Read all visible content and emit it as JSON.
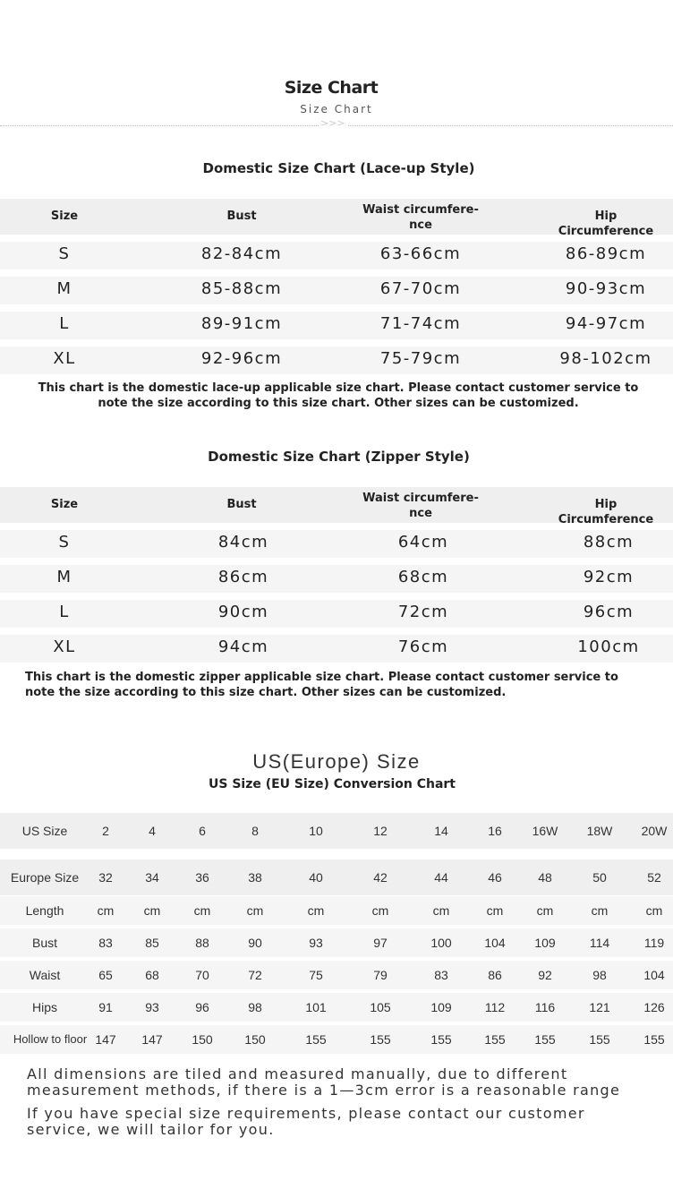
{
  "header": {
    "title": "Size Chart",
    "subtitle": "Size Chart",
    "divider": ">>>"
  },
  "lace": {
    "title": "Domestic Size Chart (Lace-up Style)",
    "headers": [
      "Size",
      "Bust",
      "Waist circumfere-\nnce",
      "Hip Circumference"
    ],
    "rows": [
      [
        "S",
        "82-84cm",
        "63-66cm",
        "86-89cm"
      ],
      [
        "M",
        "85-88cm",
        "67-70cm",
        "90-93cm"
      ],
      [
        "L",
        "89-91cm",
        "71-74cm",
        "94-97cm"
      ],
      [
        "XL",
        "92-96cm",
        "75-79cm",
        "98-102cm"
      ]
    ],
    "note": "This chart is the domestic lace-up applicable size chart. Please contact customer service to note the size according to this size chart. Other sizes can be customized."
  },
  "zipper": {
    "title": "Domestic Size Chart (Zipper Style)",
    "headers": [
      "Size",
      "Bust",
      "Waist circumfere-\nnce",
      "Hip Circumference"
    ],
    "rows": [
      [
        "S",
        "84cm",
        "64cm",
        "88cm"
      ],
      [
        "M",
        "86cm",
        "68cm",
        "92cm"
      ],
      [
        "L",
        "90cm",
        "72cm",
        "96cm"
      ],
      [
        "XL",
        "94cm",
        "76cm",
        "100cm"
      ]
    ],
    "note": "This chart is the domestic zipper applicable size chart. Please contact customer service to note the size according to this size chart. Other sizes can be customized."
  },
  "us": {
    "title": "US(Europe) Size",
    "subtitle": "US Size (EU Size) Conversion Chart",
    "rows": [
      [
        "US Size",
        "2",
        "4",
        "6",
        "8",
        "10",
        "12",
        "14",
        "16",
        "16W",
        "18W",
        "20W"
      ],
      [
        "Europe Size",
        "32",
        "34",
        "36",
        "38",
        "40",
        "42",
        "44",
        "46",
        "48",
        "50",
        "52"
      ],
      [
        "Length",
        "cm",
        "cm",
        "cm",
        "cm",
        "cm",
        "cm",
        "cm",
        "cm",
        "cm",
        "cm",
        "cm"
      ],
      [
        "Bust",
        "83",
        "85",
        "88",
        "90",
        "93",
        "97",
        "100",
        "104",
        "109",
        "114",
        "119"
      ],
      [
        "Waist",
        "65",
        "68",
        "70",
        "72",
        "75",
        "79",
        "83",
        "86",
        "92",
        "98",
        "104"
      ],
      [
        "Hips",
        "91",
        "93",
        "96",
        "98",
        "101",
        "105",
        "109",
        "112",
        "116",
        "121",
        "126"
      ],
      [
        "Hollow to floor",
        "147",
        "147",
        "150",
        "150",
        "155",
        "155",
        "155",
        "155",
        "155",
        "155",
        "155"
      ]
    ]
  },
  "footer": [
    "All dimensions are tiled and measured manually, due to different measurement methods, if there is a 1—3cm error is a reasonable range",
    "If you have special size requirements, please contact our customer service, we will tailor for you."
  ]
}
